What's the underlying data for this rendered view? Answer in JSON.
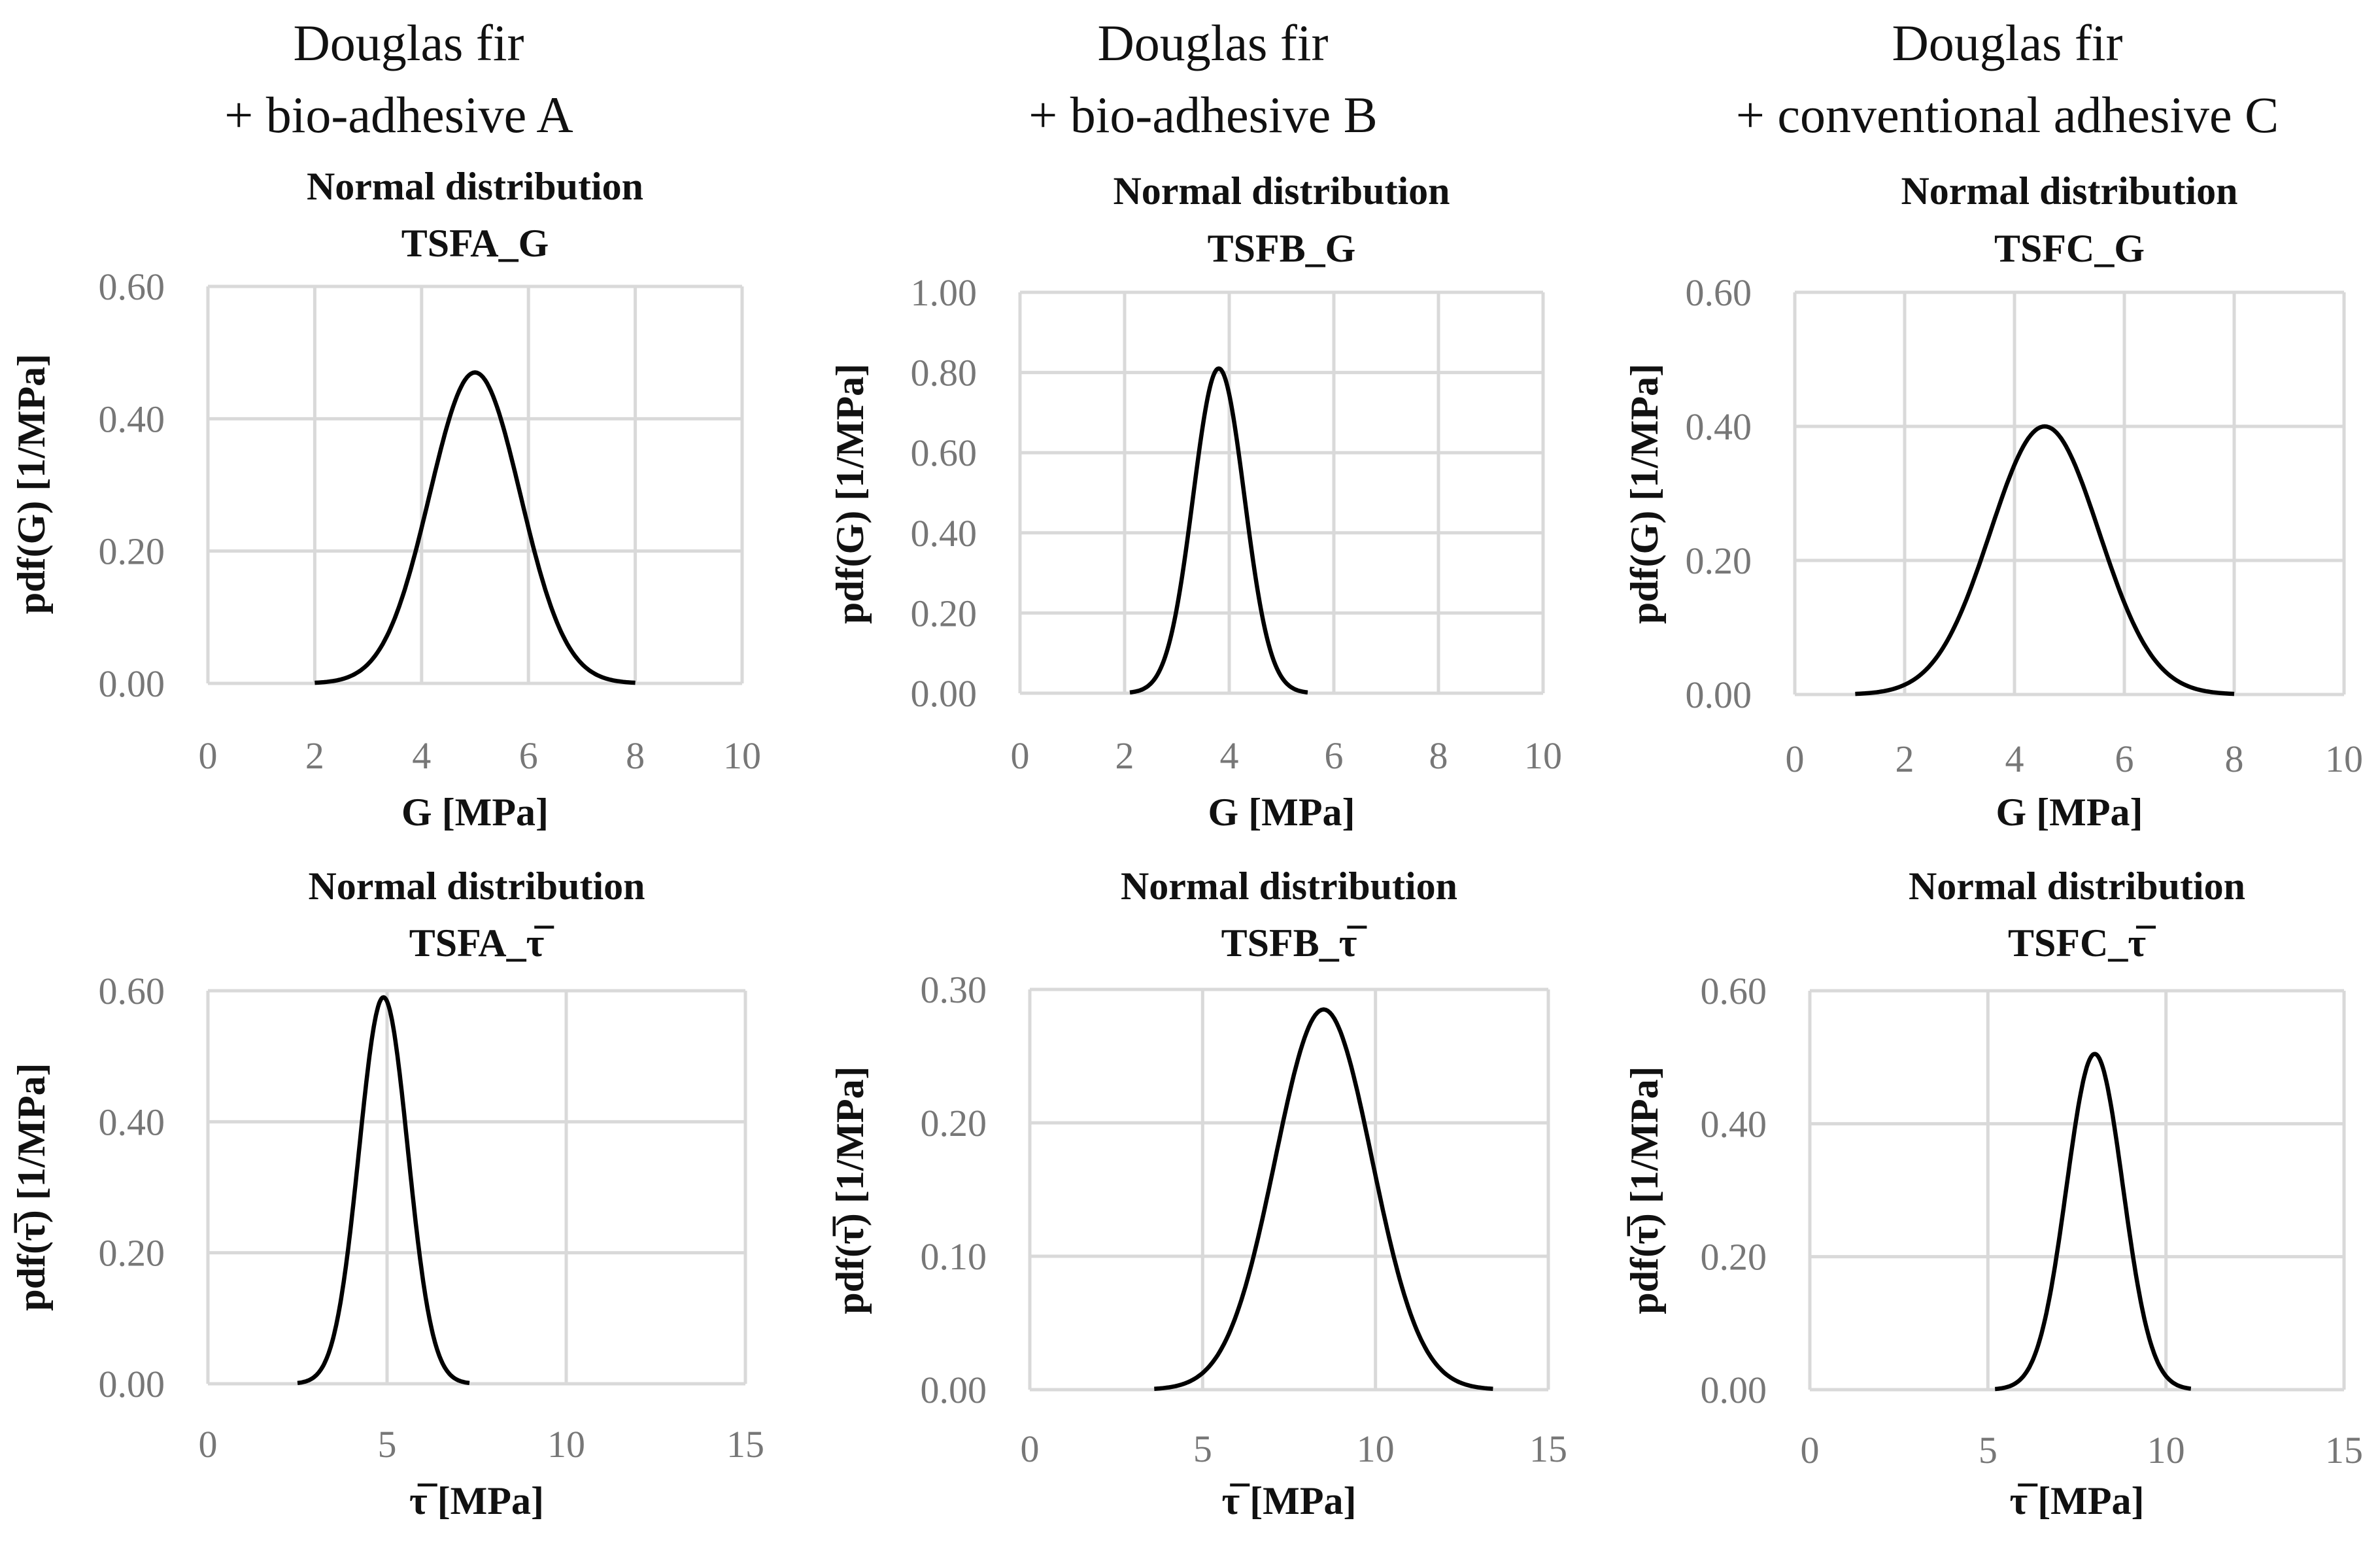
{
  "columns": [
    {
      "line1": "Douglas fir",
      "line2": "+ bio-adhesive A"
    },
    {
      "line1": "Douglas fir",
      "line2": "+ bio-adhesive B"
    },
    {
      "line1": "Douglas fir",
      "line2": "+ conventional adhesive C"
    }
  ],
  "chart_data": [
    {
      "id": "A_G",
      "type": "line",
      "title": "Normal distribution",
      "subtitle": "TSFA_G",
      "xlabel": "G [MPa]",
      "ylabel": "pdf(G) [1/MPa]",
      "xlim": [
        0,
        10
      ],
      "ylim": [
        0,
        0.6
      ],
      "xticks": [
        "0",
        "2",
        "4",
        "6",
        "8",
        "10"
      ],
      "yticks": [
        "0.00",
        "0.20",
        "0.40",
        "0.60"
      ],
      "grid": true,
      "series": [
        {
          "curve": "normal pdf",
          "mean": 5.0,
          "std": 0.85,
          "x_range": [
            2,
            8
          ],
          "peak": 0.47
        }
      ]
    },
    {
      "id": "B_G",
      "type": "line",
      "title": "Normal distribution",
      "subtitle": "TSFB_G",
      "xlabel": "G [MPa]",
      "ylabel": "pdf(G) [1/MPa]",
      "xlim": [
        0,
        10
      ],
      "ylim": [
        0,
        1.0
      ],
      "xticks": [
        "0",
        "2",
        "4",
        "6",
        "8",
        "10"
      ],
      "yticks": [
        "0.00",
        "0.20",
        "0.40",
        "0.60",
        "0.80",
        "1.00"
      ],
      "grid": true,
      "series": [
        {
          "curve": "normal pdf",
          "mean": 3.8,
          "std": 0.49,
          "x_range": [
            2.1,
            5.5
          ],
          "peak": 0.81
        }
      ]
    },
    {
      "id": "C_G",
      "type": "line",
      "title": "Normal distribution",
      "subtitle": "TSFC_G",
      "xlabel": "G [MPa]",
      "ylabel": "pdf(G) [1/MPa]",
      "xlim": [
        0,
        10
      ],
      "ylim": [
        0,
        0.6
      ],
      "xticks": [
        "0",
        "2",
        "4",
        "6",
        "8",
        "10"
      ],
      "yticks": [
        "0.00",
        "0.20",
        "0.40",
        "0.60"
      ],
      "grid": true,
      "series": [
        {
          "curve": "normal pdf",
          "mean": 4.55,
          "std": 0.99,
          "x_range": [
            1.1,
            8.0
          ],
          "peak": 0.4
        }
      ]
    },
    {
      "id": "A_T",
      "type": "line",
      "title": "Normal distribution",
      "subtitle": "TSFA_τ̅",
      "xlabel": "τ̅ [MPa]",
      "ylabel": "pdf(τ̅) [1/MPa]",
      "xlim": [
        0,
        15
      ],
      "ylim": [
        0,
        0.6
      ],
      "xticks": [
        "0",
        "5",
        "10",
        "15"
      ],
      "yticks": [
        "0.00",
        "0.20",
        "0.40",
        "0.60"
      ],
      "grid": true,
      "series": [
        {
          "curve": "normal pdf",
          "mean": 4.9,
          "std": 0.68,
          "x_range": [
            2.5,
            7.3
          ],
          "peak": 0.59
        }
      ]
    },
    {
      "id": "B_T",
      "type": "line",
      "title": "Normal distribution",
      "subtitle": "TSFB_τ̅",
      "xlabel": "τ̅ [MPa]",
      "ylabel": "pdf(τ̅) [1/MPa]",
      "xlim": [
        0,
        15
      ],
      "ylim": [
        0,
        0.3
      ],
      "xticks": [
        "0",
        "5",
        "10",
        "15"
      ],
      "yticks": [
        "0.00",
        "0.10",
        "0.20",
        "0.30"
      ],
      "grid": true,
      "series": [
        {
          "curve": "normal pdf",
          "mean": 8.5,
          "std": 1.4,
          "x_range": [
            3.6,
            13.4
          ],
          "peak": 0.285
        }
      ]
    },
    {
      "id": "C_T",
      "type": "line",
      "title": "Normal distribution",
      "subtitle": "TSFC_τ̅",
      "xlabel": "τ̅ [MPa]",
      "ylabel": "pdf(τ̅) [1/MPa]",
      "xlim": [
        0,
        15
      ],
      "ylim": [
        0,
        0.6
      ],
      "xticks": [
        "0",
        "5",
        "10",
        "15"
      ],
      "yticks": [
        "0.00",
        "0.20",
        "0.40",
        "0.60"
      ],
      "grid": true,
      "series": [
        {
          "curve": "normal pdf",
          "mean": 8.0,
          "std": 0.79,
          "x_range": [
            5.2,
            10.7
          ],
          "peak": 0.505
        }
      ]
    }
  ]
}
